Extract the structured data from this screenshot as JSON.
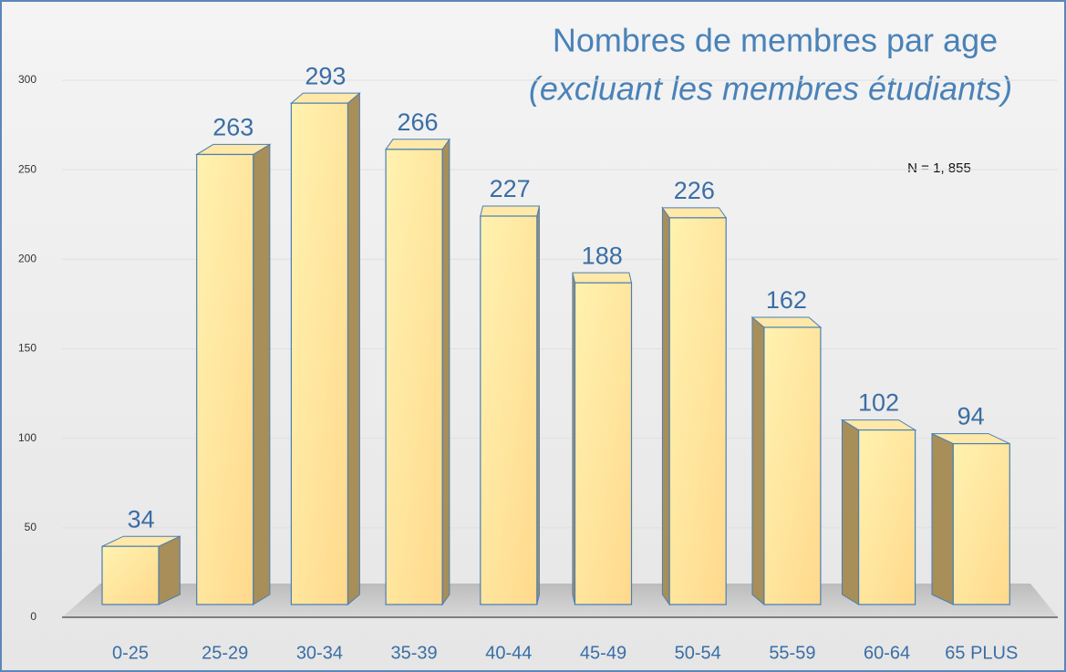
{
  "chart_data": {
    "type": "bar3d",
    "title": "Nombres de membres par age",
    "subtitle": "(excluant les membres étudiants)",
    "annotation": "N = 1, 855",
    "categories": [
      "0-25",
      "25-29",
      "30-34",
      "35-39",
      "40-44",
      "45-49",
      "50-54",
      "55-59",
      "60-64",
      "65 PLUS"
    ],
    "values": [
      34,
      263,
      293,
      266,
      227,
      188,
      226,
      162,
      102,
      94
    ],
    "color": "#ffe39a",
    "ylim": [
      0,
      300
    ],
    "yticks": [
      0,
      50,
      100,
      150,
      200,
      250,
      300
    ],
    "grid": true
  }
}
